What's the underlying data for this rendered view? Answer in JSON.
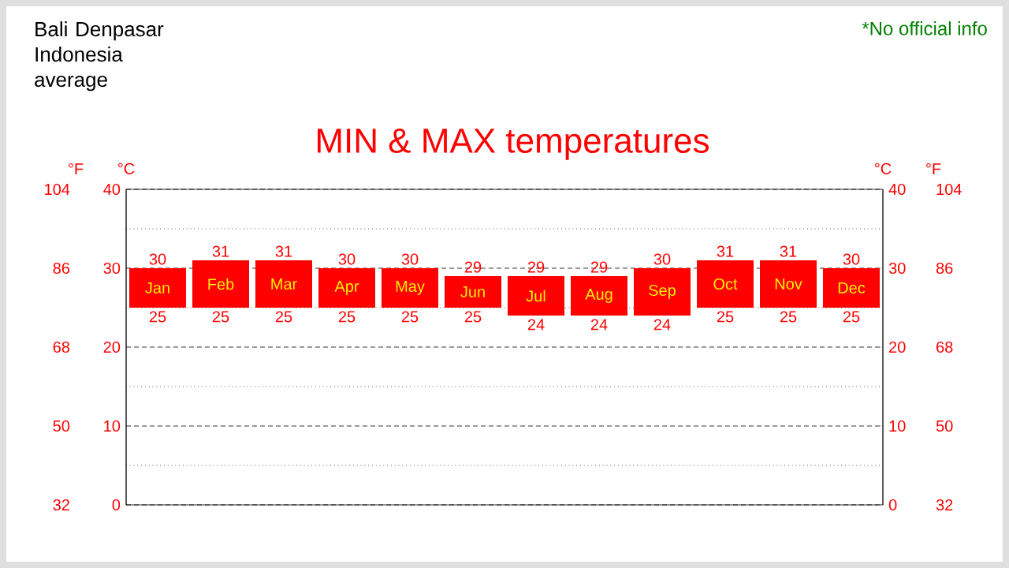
{
  "chart_data": {
    "type": "bar",
    "title": "MIN & MAX temperatures",
    "subtitle": "Bali Denpasar Indonesia average",
    "categories": [
      "Jan",
      "Feb",
      "Mar",
      "Apr",
      "May",
      "Jun",
      "Jul",
      "Aug",
      "Sep",
      "Oct",
      "Nov",
      "Dec"
    ],
    "base": [
      25,
      25,
      25,
      25,
      25,
      25,
      24,
      24,
      24,
      25,
      25,
      25
    ],
    "values": [
      5,
      6,
      6,
      5,
      5,
      4,
      5,
      5,
      6,
      6,
      6,
      5
    ],
    "color": "#ff0000",
    "ylabel": "°C",
    "y2label": "°C",
    "y3label": "°F",
    "ylim": [
      0,
      40
    ],
    "yticks": [
      0,
      {
        "value": 5,
        "label": null
      },
      10,
      {
        "value": 15,
        "label": null
      },
      20,
      {
        "value": 25,
        "label": null
      },
      30,
      {
        "value": 35,
        "label": null
      },
      40
    ],
    "y2lim": [
      0,
      40
    ],
    "y2ticks": [
      0,
      10,
      20,
      30,
      40
    ],
    "y3lim": [
      32,
      104
    ],
    "y3ticks": [
      32,
      50,
      68,
      86,
      104
    ],
    "grid": "y",
    "annotations": [
      "*No official info",
      "104",
      "86",
      "68",
      "50",
      "32",
      {
        "text": "30",
        "x": "Jan",
        "y": 30
      },
      {
        "text": "25",
        "x": "Jan",
        "y": 25
      },
      {
        "text": "31",
        "x": "Feb",
        "y": 31
      },
      {
        "text": "25",
        "x": "Feb",
        "y": 25
      },
      {
        "text": "31",
        "x": "Mar",
        "y": 31
      },
      {
        "text": "25",
        "x": "Mar",
        "y": 25
      },
      {
        "text": "30",
        "x": "Apr",
        "y": 30
      },
      {
        "text": "25",
        "x": "Apr",
        "y": 25
      },
      {
        "text": "30",
        "x": "May",
        "y": 30
      },
      {
        "text": "25",
        "x": "May",
        "y": 25
      },
      {
        "text": "29",
        "x": "Jun",
        "y": 29
      },
      {
        "text": "25",
        "x": "Jun",
        "y": 25
      },
      {
        "text": "29",
        "x": "Jul",
        "y": 29
      },
      {
        "text": "24",
        "x": "Jul",
        "y": 24
      },
      {
        "text": "29",
        "x": "Aug",
        "y": 29
      },
      {
        "text": "24",
        "x": "Aug",
        "y": 24
      },
      {
        "text": "30",
        "x": "Sep",
        "y": 30
      },
      {
        "text": "24",
        "x": "Sep",
        "y": 24
      },
      {
        "text": "31",
        "x": "Oct",
        "y": 31
      },
      {
        "text": "25",
        "x": "Oct",
        "y": 25
      },
      {
        "text": "31",
        "x": "Nov",
        "y": 31
      },
      {
        "text": "25",
        "x": "Nov",
        "y": 25
      },
      {
        "text": "30",
        "x": "Dec",
        "y": 30
      },
      {
        "text": "25",
        "x": "Dec",
        "y": 25
      }
    ]
  }
}
